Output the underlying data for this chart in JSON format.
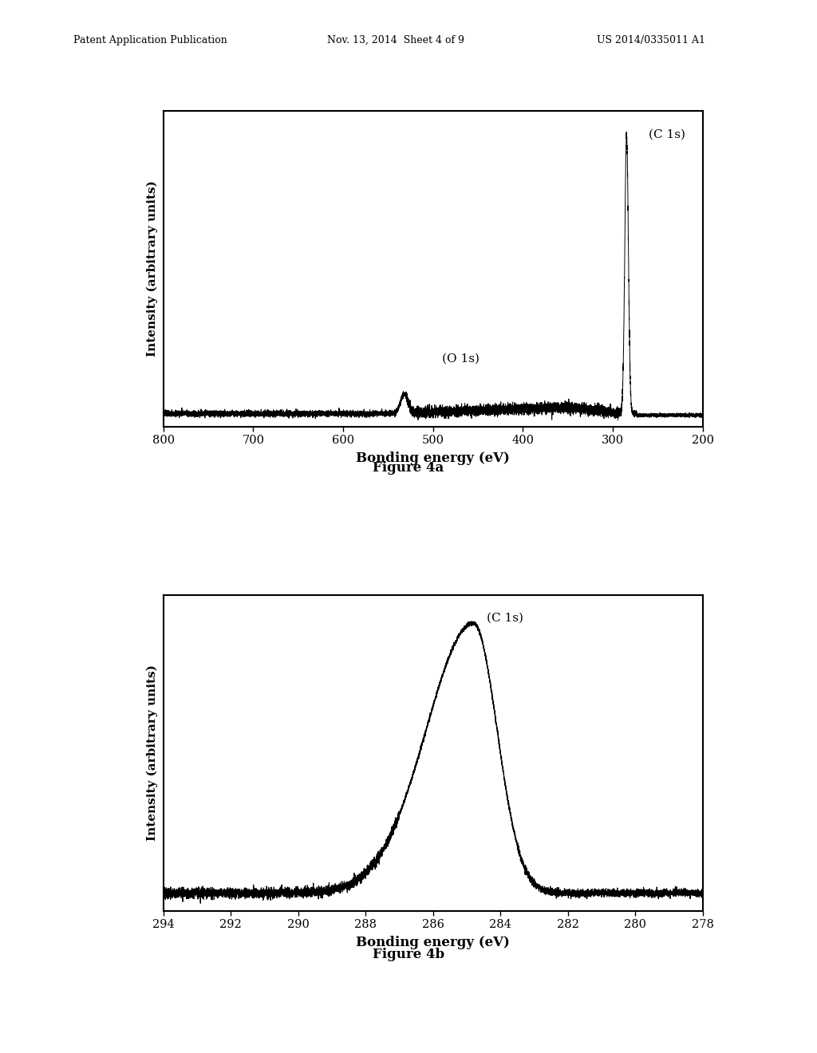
{
  "fig_width": 10.24,
  "fig_height": 13.2,
  "bg_color": "#ffffff",
  "header_left": "Patent Application Publication",
  "header_mid": "Nov. 13, 2014  Sheet 4 of 9",
  "header_right": "US 2014/0335011 A1",
  "figure4a_caption": "Figure 4a",
  "figure4b_caption": "Figure 4b",
  "plot1": {
    "xlabel": "Bonding energy (eV)",
    "ylabel": "Intensity (arbitrary units)",
    "xticks": [
      800,
      700,
      600,
      500,
      400,
      300,
      200
    ],
    "annotation_C1s": "(C 1s)",
    "annotation_O1s": "(O 1s)"
  },
  "plot2": {
    "xlabel": "Bonding energy (eV)",
    "ylabel": "Intensity (arbitrary units)",
    "xticks": [
      294,
      292,
      290,
      288,
      286,
      284,
      282,
      280,
      278
    ],
    "annotation_C1s": "(C 1s)"
  }
}
